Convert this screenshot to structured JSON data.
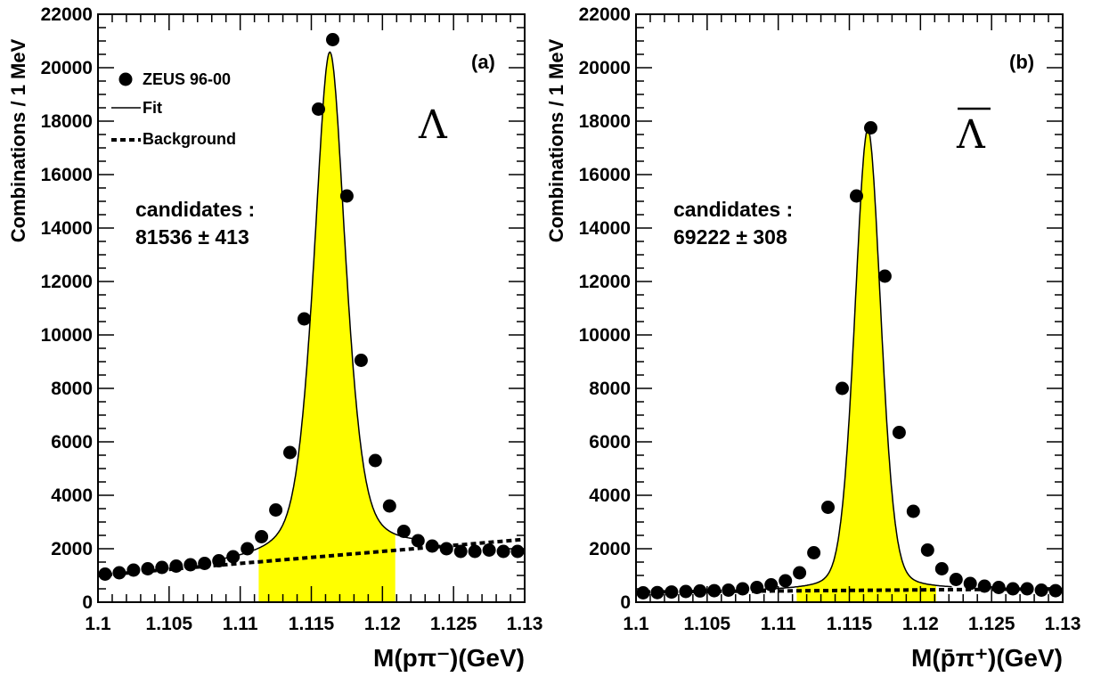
{
  "chart_data": [
    {
      "type": "scatter",
      "panel_tag": "(a)",
      "particle": "Λ",
      "particle_bar": false,
      "ylabel": "Combinations / 1 MeV",
      "xlabel": "M(pπ⁻)(GeV)",
      "xlim": [
        1.1,
        1.13
      ],
      "ylim": [
        0,
        22000
      ],
      "xticks": [
        "1.1",
        "1.105",
        "1.11",
        "1.115",
        "1.12",
        "1.125",
        "1.13"
      ],
      "yticks": [
        "0",
        "2000",
        "4000",
        "6000",
        "8000",
        "10000",
        "12000",
        "14000",
        "16000",
        "18000",
        "20000",
        "22000"
      ],
      "candidates_label": "candidates :",
      "candidates_value": "81536 ± 413",
      "legend": {
        "data": "ZEUS 96-00",
        "fit": "Fit",
        "background": "Background",
        "position": "top-left"
      },
      "signal_window": [
        1.1113,
        1.1209
      ],
      "peak": 1.1163,
      "series": [
        {
          "name": "ZEUS 96-00",
          "x": [
            1.1005,
            1.1015,
            1.1025,
            1.1035,
            1.1045,
            1.1055,
            1.1065,
            1.1075,
            1.1085,
            1.1095,
            1.1105,
            1.1115,
            1.1125,
            1.1135,
            1.1145,
            1.1155,
            1.1165,
            1.1175,
            1.1185,
            1.1195,
            1.1205,
            1.1215,
            1.1225,
            1.1235,
            1.1245,
            1.1255,
            1.1265,
            1.1275,
            1.1285,
            1.1295
          ],
          "y": [
            1050,
            1100,
            1200,
            1250,
            1300,
            1350,
            1400,
            1450,
            1550,
            1700,
            2000,
            2450,
            3450,
            5600,
            10600,
            18450,
            21050,
            15200,
            9050,
            5300,
            3600,
            2650,
            2300,
            2100,
            2000,
            1900,
            1900,
            1950,
            1900,
            1900
          ]
        },
        {
          "name": "Fit",
          "model": {
            "bkg0": 1000,
            "bkg_slope": 45000,
            "amp": 18850,
            "width": 0.0012,
            "shape": 0.5
          }
        },
        {
          "name": "Background",
          "x": [
            1.1,
            1.13
          ],
          "y": [
            1000,
            2350
          ]
        }
      ]
    },
    {
      "type": "scatter",
      "panel_tag": "(b)",
      "particle": "Λ",
      "particle_bar": true,
      "ylabel": "Combinations / 1 MeV",
      "xlabel": "M(p̄π⁺)(GeV)",
      "xlim": [
        1.1,
        1.13
      ],
      "ylim": [
        0,
        22000
      ],
      "xticks": [
        "1.1",
        "1.105",
        "1.11",
        "1.115",
        "1.12",
        "1.125",
        "1.13"
      ],
      "yticks": [
        "0",
        "2000",
        "4000",
        "6000",
        "8000",
        "10000",
        "12000",
        "14000",
        "16000",
        "18000",
        "20000",
        "22000"
      ],
      "candidates_label": "candidates :",
      "candidates_value": "69222 ± 308",
      "signal_window": [
        1.1113,
        1.1211
      ],
      "peak": 1.1163,
      "series": [
        {
          "name": "ZEUS 96-00",
          "x": [
            1.1005,
            1.1015,
            1.1025,
            1.1035,
            1.1045,
            1.1055,
            1.1065,
            1.1075,
            1.1085,
            1.1095,
            1.1105,
            1.1115,
            1.1125,
            1.1135,
            1.1145,
            1.1155,
            1.1165,
            1.1175,
            1.1185,
            1.1195,
            1.1205,
            1.1215,
            1.1225,
            1.1235,
            1.1245,
            1.1255,
            1.1265,
            1.1275,
            1.1285,
            1.1295
          ],
          "y": [
            350,
            360,
            380,
            400,
            420,
            430,
            450,
            500,
            550,
            650,
            800,
            1100,
            1850,
            3550,
            8000,
            15200,
            17750,
            12200,
            6350,
            3400,
            1950,
            1250,
            850,
            700,
            600,
            550,
            500,
            500,
            450,
            430
          ]
        },
        {
          "name": "Fit",
          "model": {
            "bkg0": 380,
            "bkg_slope": 4000,
            "amp": 17250,
            "width": 0.00095,
            "shape": 0.75
          }
        },
        {
          "name": "Background",
          "x": [
            1.1,
            1.13
          ],
          "y": [
            380,
            500
          ]
        }
      ]
    }
  ],
  "colors": {
    "signal_fill": "#ffff00",
    "marker": "#000000",
    "line": "#000000",
    "background": "#ffffff"
  }
}
